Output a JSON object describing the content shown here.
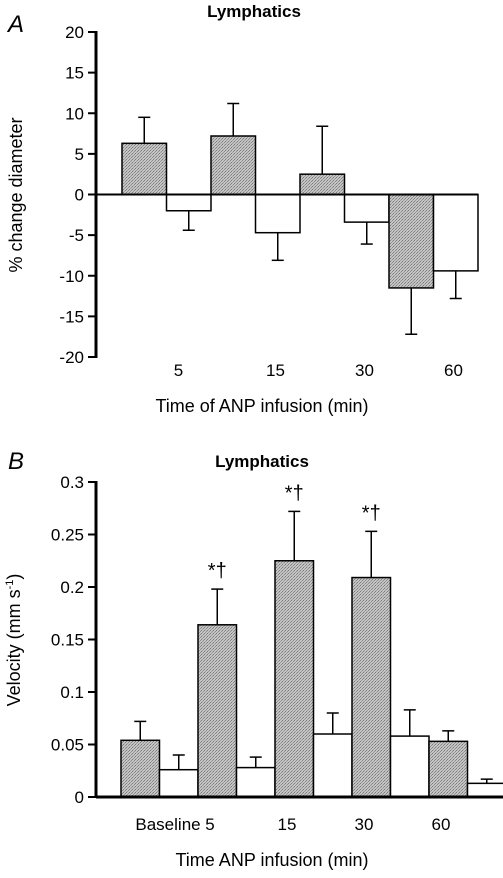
{
  "colors": {
    "filled_bar": "#b3b3b3",
    "open_bar": "#ffffff",
    "stroke": "#000000",
    "background": "#ffffff"
  },
  "chart_data": [
    {
      "type": "bar",
      "panel": "A",
      "title": "Lymphatics",
      "ylabel": "% change diameter",
      "xlabel": "Time of ANP infusion (min)",
      "ylim": [
        -20,
        20
      ],
      "yticks": [
        20,
        15,
        10,
        5,
        0,
        -5,
        -10,
        -15,
        -20
      ],
      "xtick_labels": [
        "5",
        "15",
        "30",
        "60"
      ],
      "series": [
        {
          "style": "filled",
          "values": [
            6.3,
            7.2,
            2.5,
            -11.5
          ],
          "errors": [
            3.2,
            4.0,
            5.9,
            5.7
          ]
        },
        {
          "style": "open",
          "values": [
            -2.0,
            -4.7,
            -3.4,
            -9.4
          ],
          "errors": [
            2.4,
            3.4,
            2.7,
            3.4
          ]
        }
      ],
      "annotations": []
    },
    {
      "type": "bar",
      "panel": "B",
      "title": "Lymphatics",
      "ylabel": "Velocity (mm s",
      "ylabel_sup": "-1",
      "ylabel_end": ")",
      "xlabel": "Time ANP infusion (min)",
      "ylim": [
        0,
        0.3
      ],
      "yticks": [
        "0.3",
        "0.25",
        "0.2",
        "0.15",
        "0.1",
        "0.05",
        "0"
      ],
      "xtick_labels": [
        "Baseline",
        "5",
        "15",
        "30",
        "60"
      ],
      "series": [
        {
          "style": "filled",
          "values": [
            0.054,
            0.164,
            0.225,
            0.209,
            0.053
          ],
          "errors": [
            0.018,
            0.034,
            0.047,
            0.044,
            0.01
          ]
        },
        {
          "style": "open",
          "values": [
            0.026,
            0.028,
            0.06,
            0.058,
            0.013
          ],
          "errors": [
            0.014,
            0.01,
            0.02,
            0.025,
            0.004
          ]
        }
      ],
      "annotations": [
        {
          "bar_index": 1,
          "text": "*†"
        },
        {
          "bar_index": 2,
          "text": "*†"
        },
        {
          "bar_index": 3,
          "text": "*†"
        }
      ]
    }
  ]
}
